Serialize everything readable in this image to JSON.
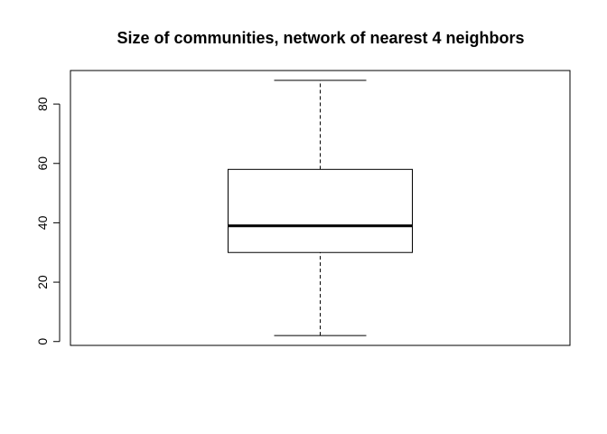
{
  "chart_data": {
    "type": "boxplot",
    "title": "Size of communities, network of nearest 4 neighbors",
    "xlabel": "",
    "ylabel": "",
    "ylim": [
      -1.3,
      91.3
    ],
    "yticks": [
      0,
      20,
      40,
      60,
      80
    ],
    "grid": false,
    "boxes": [
      {
        "whisker_low": 2,
        "q1": 30,
        "median": 39,
        "q3": 58,
        "whisker_high": 88
      }
    ]
  }
}
